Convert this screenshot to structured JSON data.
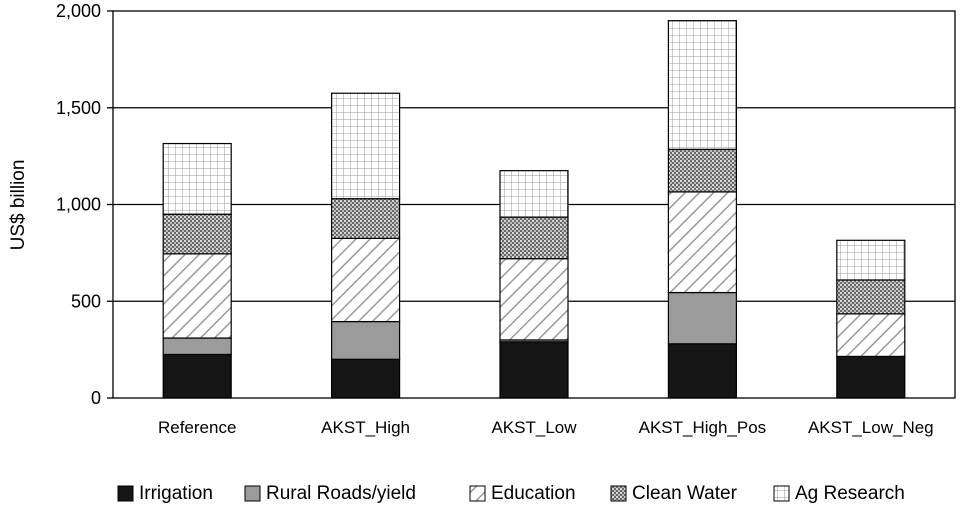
{
  "chart_data": {
    "type": "bar",
    "stacked": true,
    "title": "",
    "xlabel": "",
    "ylabel": "US$ billion",
    "ylim": [
      0,
      2000
    ],
    "yticks": [
      "0",
      "500",
      "1,000",
      "1,500",
      "2,000"
    ],
    "ytick_values": [
      0,
      500,
      1000,
      1500,
      2000
    ],
    "grid": true,
    "legend_position": "bottom",
    "categories": [
      "Reference",
      "AKST_High",
      "AKST_Low",
      "AKST_High_Pos",
      "AKST_Low_Neg"
    ],
    "series": [
      {
        "name": "Irrigation",
        "pattern": "solid-black",
        "values": [
          225,
          200,
          290,
          280,
          215
        ]
      },
      {
        "name": "Rural Roads/yield",
        "pattern": "solid-gray",
        "values": [
          85,
          195,
          10,
          265,
          0
        ]
      },
      {
        "name": "Education",
        "pattern": "diagonal-hatch",
        "values": [
          435,
          430,
          420,
          520,
          220
        ]
      },
      {
        "name": "Clean Water",
        "pattern": "crosshatch-dense",
        "values": [
          205,
          205,
          215,
          220,
          175
        ]
      },
      {
        "name": "Ag Research",
        "pattern": "grid-light",
        "values": [
          365,
          545,
          240,
          665,
          205
        ]
      }
    ]
  }
}
